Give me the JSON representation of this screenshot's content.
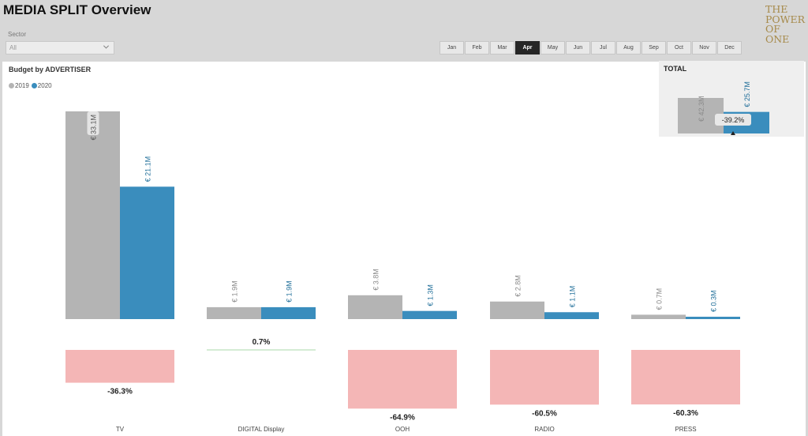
{
  "header": {
    "title": "MEDIA SPLIT Overview"
  },
  "sector_filter": {
    "label": "Sector",
    "value": "All"
  },
  "months": [
    "Jan",
    "Feb",
    "Mar",
    "Apr",
    "May",
    "Jun",
    "Jul",
    "Aug",
    "Sep",
    "Oct",
    "Nov",
    "Dec"
  ],
  "selected_month": "Apr",
  "logo": {
    "lines": [
      "THE",
      "POWER",
      "OF",
      "ONE"
    ]
  },
  "colors": {
    "series_2019": "#b4b4b4",
    "series_2020": "#3a8dbd",
    "negative_change": "#f4b6b6",
    "positive_change": "#a8d8a8",
    "logo": "#a68a4a"
  },
  "chart_data": [
    {
      "type": "bar",
      "title": "Budget by ADVERTISER",
      "categories": [
        "TV",
        "DIGITAL Display",
        "OOH",
        "RADIO",
        "PRESS"
      ],
      "series": [
        {
          "name": "2019",
          "values": [
            33.1,
            1.9,
            3.8,
            2.8,
            0.7
          ],
          "labels": [
            "€ 33.1M",
            "€ 1.9M",
            "€ 3.8M",
            "€ 2.8M",
            "€ 0.7M"
          ]
        },
        {
          "name": "2020",
          "values": [
            21.1,
            1.9,
            1.3,
            1.1,
            0.3
          ],
          "labels": [
            "€ 21.1M",
            "€ 1.9M",
            "€ 1.3M",
            "€ 1.1M",
            "€ 0.3M"
          ]
        }
      ],
      "legend": "top-left",
      "ylim": [
        0,
        35
      ],
      "grid": false
    },
    {
      "type": "bar",
      "categories": [
        "TV",
        "DIGITAL Display",
        "OOH",
        "RADIO",
        "PRESS"
      ],
      "values": [
        -36.3,
        0.7,
        -64.9,
        -60.5,
        -60.3
      ],
      "labels": [
        "-36.3%",
        "0.7%",
        "-64.9%",
        "-60.5%",
        "-60.3%"
      ]
    },
    {
      "type": "bar",
      "title": "TOTAL",
      "series": [
        {
          "name": "2019",
          "values": [
            42.3
          ],
          "labels": [
            "€ 42.3M"
          ]
        },
        {
          "name": "2020",
          "values": [
            25.7
          ],
          "labels": [
            "€ 25.7M"
          ]
        }
      ],
      "change_label": "-39.2%"
    }
  ]
}
